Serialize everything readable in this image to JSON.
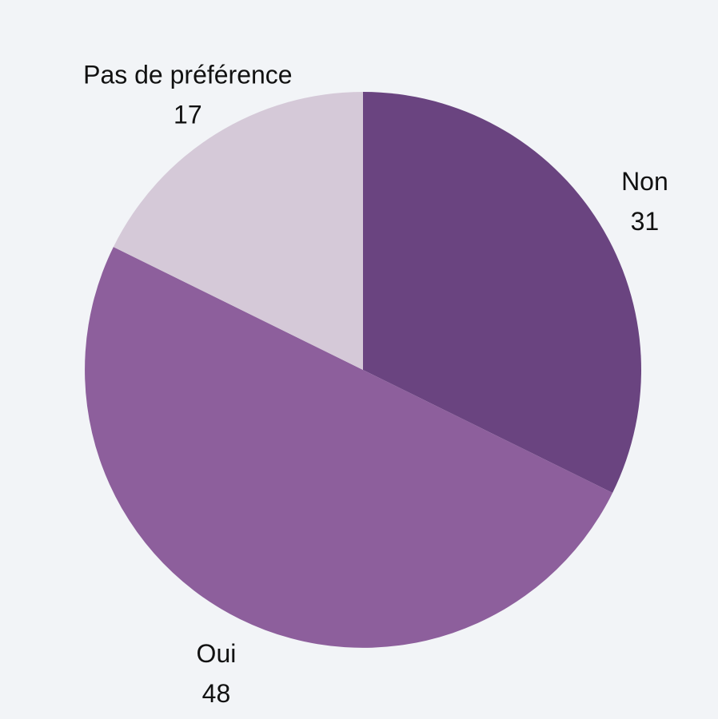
{
  "chart_data": {
    "type": "pie",
    "title": "",
    "slices": [
      {
        "label": "Non",
        "value": 31,
        "color": "#6a4480"
      },
      {
        "label": "Oui",
        "value": 48,
        "color": "#8d5f9c"
      },
      {
        "label": "Pas de préférence",
        "value": 17,
        "color": "#d5c9d8"
      }
    ],
    "start": "top",
    "direction": "clockwise",
    "legend": "none"
  }
}
